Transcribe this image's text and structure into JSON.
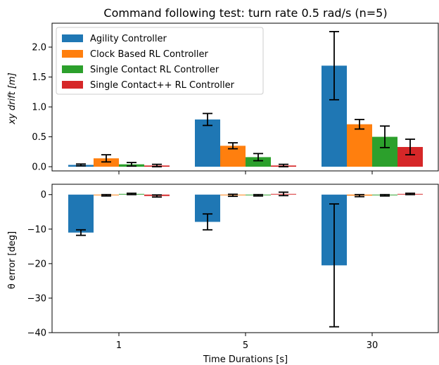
{
  "chart_data": [
    {
      "type": "bar",
      "title": "Command following test: turn rate 0.5 rad/s (n=5)",
      "ylabel": "xy drift [m]",
      "xlabel": "",
      "categories": [
        "1",
        "5",
        "30"
      ],
      "ylim": [
        -0.07,
        2.4
      ],
      "yticks": [
        0.0,
        0.5,
        1.0,
        1.5,
        2.0
      ],
      "ytick_labels": [
        "0.0",
        "0.5",
        "1.0",
        "1.5",
        "2.0"
      ],
      "legend_position": "top-left",
      "series": [
        {
          "name": "Agility Controller",
          "color": "#1f77b4",
          "values": [
            0.03,
            0.79,
            1.69
          ],
          "errors": [
            0.015,
            0.1,
            0.57
          ]
        },
        {
          "name": "Clock Based RL Controller",
          "color": "#ff7f0e",
          "values": [
            0.14,
            0.35,
            0.71
          ],
          "errors": [
            0.06,
            0.05,
            0.08
          ]
        },
        {
          "name": "Single Contact RL Controller",
          "color": "#2ca02c",
          "values": [
            0.04,
            0.16,
            0.5
          ],
          "errors": [
            0.03,
            0.06,
            0.18
          ]
        },
        {
          "name": "Single Contact++ RL Controller",
          "color": "#d62728",
          "values": [
            0.02,
            0.02,
            0.33
          ],
          "errors": [
            0.02,
            0.02,
            0.13
          ]
        }
      ]
    },
    {
      "type": "bar",
      "title": "",
      "ylabel": "θ error [deg]",
      "xlabel": "Time Durations [s]",
      "categories": [
        "1",
        "5",
        "30"
      ],
      "ylim": [
        -40,
        3
      ],
      "yticks": [
        0,
        -10,
        -20,
        -30,
        -40
      ],
      "ytick_labels": [
        "0",
        "−10",
        "−20",
        "−30",
        "−40"
      ],
      "series": [
        {
          "name": "Agility Controller",
          "color": "#1f77b4",
          "values": [
            -11.0,
            -7.9,
            -20.5
          ],
          "errors": [
            0.8,
            2.3,
            17.8
          ]
        },
        {
          "name": "Clock Based RL Controller",
          "color": "#ff7f0e",
          "values": [
            -0.2,
            -0.2,
            -0.3
          ],
          "errors": [
            0.2,
            0.3,
            0.3
          ]
        },
        {
          "name": "Single Contact RL Controller",
          "color": "#2ca02c",
          "values": [
            0.2,
            -0.2,
            -0.2
          ],
          "errors": [
            0.2,
            0.2,
            0.2
          ]
        },
        {
          "name": "Single Contact++ RL Controller",
          "color": "#d62728",
          "values": [
            -0.4,
            0.2,
            0.2
          ],
          "errors": [
            0.3,
            0.5,
            0.2
          ]
        }
      ]
    }
  ]
}
